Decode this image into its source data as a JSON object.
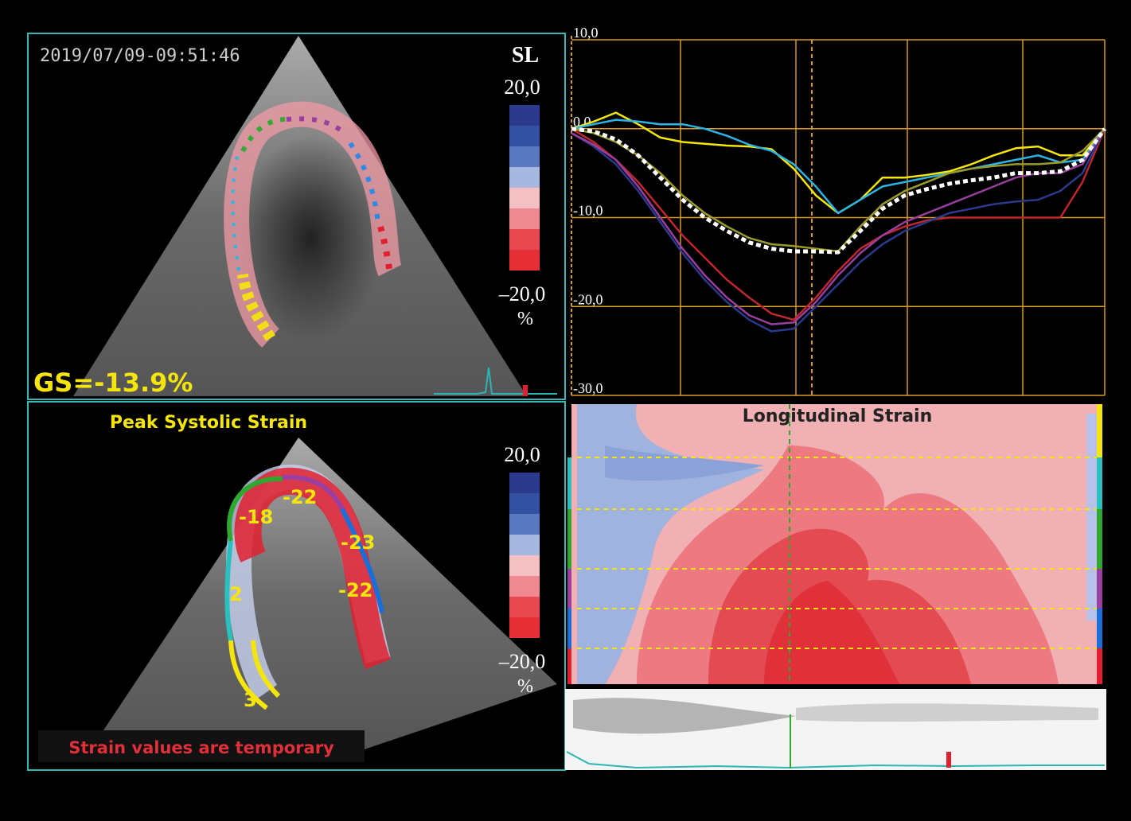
{
  "top_left": {
    "timestamp": "2019/07/09-09:51:46",
    "mode": "SL",
    "scale_max": "20,0",
    "scale_min": "–20,0",
    "unit": "%",
    "global_strain": "GS=-13.9%"
  },
  "bottom_left": {
    "title": "Peak Systolic Strain",
    "segment_labels": [
      "-18",
      "-22",
      "-23",
      "-22",
      "2",
      "3"
    ],
    "scale_max": "20,0",
    "scale_min": "–20,0",
    "unit": "%",
    "warning": "Strain values are temporary"
  },
  "strain_curves": {
    "type": "line",
    "ylim": [
      -30,
      10
    ],
    "yticks": [
      {
        "value": 10,
        "label": "10,0"
      },
      {
        "value": 0,
        "label": "0,0"
      },
      {
        "value": -10,
        "label": "-10,0"
      },
      {
        "value": -20,
        "label": "-20,0"
      },
      {
        "value": -30,
        "label": "-30,0"
      }
    ],
    "grid": true,
    "series": [
      {
        "color": "#f5e50a",
        "values": [
          0,
          0.8,
          1.8,
          0.5,
          -1,
          -1.5,
          -1.7,
          -1.9,
          -2,
          -2.3,
          -4.5,
          -7.5,
          -9.5,
          -8,
          -5.5,
          -5.5,
          -5.2,
          -4.8,
          -4,
          -3,
          -2.2,
          -2,
          -3,
          -3,
          0
        ]
      },
      {
        "color": "#2bb5e6",
        "values": [
          0,
          0.5,
          1,
          0.8,
          0.5,
          0.5,
          0,
          -0.8,
          -1.8,
          -2.5,
          -4,
          -6.5,
          -9.5,
          -8,
          -6.5,
          -6,
          -5.5,
          -5,
          -4.5,
          -4,
          -3.5,
          -3,
          -3.8,
          -3.5,
          0
        ]
      },
      {
        "color": "#c0272d",
        "values": [
          0,
          -1.5,
          -3.5,
          -6,
          -9,
          -12,
          -14.5,
          -17,
          -19,
          -20.8,
          -21.5,
          -19,
          -16,
          -13.5,
          -12,
          -11,
          -10.3,
          -10,
          -10,
          -10,
          -10,
          -10,
          -10,
          -6,
          0
        ]
      },
      {
        "color": "#2b3a8c",
        "values": [
          -0.5,
          -2,
          -4,
          -7,
          -10.5,
          -14,
          -17,
          -19.5,
          -21.5,
          -22.8,
          -22.5,
          -20,
          -17.5,
          -15,
          -13,
          -11.5,
          -10.5,
          -9.5,
          -9,
          -8.5,
          -8.2,
          -8,
          -7,
          -5,
          0
        ]
      },
      {
        "color": "#9a3fa0",
        "values": [
          -0.5,
          -1.8,
          -3.5,
          -6.5,
          -10,
          -13.5,
          -16.5,
          -19,
          -21,
          -22,
          -21.8,
          -19.5,
          -16.5,
          -14,
          -12,
          -10.5,
          -9.5,
          -8.5,
          -7.5,
          -6.5,
          -5.5,
          -5,
          -5,
          -4,
          0
        ]
      },
      {
        "color": "#9a9a2a",
        "values": [
          0,
          -0.5,
          -1.5,
          -3,
          -5,
          -7.5,
          -9.5,
          -11,
          -12.3,
          -13,
          -13.2,
          -13.5,
          -13.8,
          -11,
          -8.5,
          -7,
          -6,
          -5,
          -4.5,
          -4.2,
          -4,
          -4,
          -3.8,
          -2.5,
          0
        ]
      },
      {
        "color": "#ffffff",
        "dashed": true,
        "values": [
          0,
          -0.3,
          -1.2,
          -3,
          -5.5,
          -8,
          -10,
          -11.5,
          -12.8,
          -13.5,
          -13.8,
          -13.8,
          -13.9,
          -11.5,
          -9,
          -7.5,
          -6.8,
          -6.2,
          -5.8,
          -5.5,
          -5,
          -5,
          -4.8,
          -3.5,
          0
        ]
      }
    ]
  },
  "strain_map": {
    "title": "Longitudinal Strain"
  }
}
